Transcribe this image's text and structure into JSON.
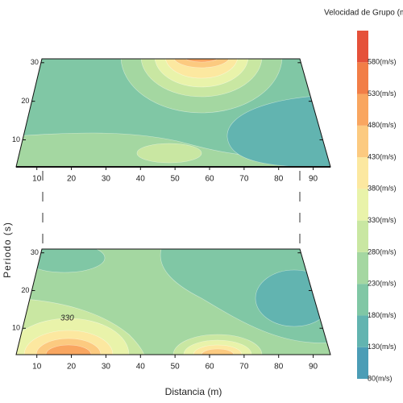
{
  "chart_data": {
    "type": "contour",
    "colorbar_title": "Velocidad de Grupo (m/s)",
    "clim": [
      80,
      630
    ],
    "levels": [
      {
        "value": 80,
        "label": "80(m/s)"
      },
      {
        "value": 130,
        "label": "130(m/s)"
      },
      {
        "value": 180,
        "label": "180(m/s)"
      },
      {
        "value": 230,
        "label": "230(m/s)"
      },
      {
        "value": 280,
        "label": "280(m/s)"
      },
      {
        "value": 330,
        "label": "330(m/s)"
      },
      {
        "value": 380,
        "label": "380(m/s)"
      },
      {
        "value": 430,
        "label": "430(m/s)"
      },
      {
        "value": 480,
        "label": "480(m/s)"
      },
      {
        "value": 530,
        "label": "530(m/s)"
      },
      {
        "value": 580,
        "label": "580(m/s)"
      }
    ],
    "colors": [
      "#4b9db6",
      "#62b4b0",
      "#80c7a5",
      "#a4d7a1",
      "#c9e7a2",
      "#e9f3aa",
      "#fce8a0",
      "#fcca80",
      "#f9a660",
      "#f27e47",
      "#e5513a"
    ],
    "xlabel": "Distancia (m)",
    "ylabel": "Periodo (s)",
    "xlim": [
      4,
      95
    ],
    "xticks": [
      10,
      20,
      30,
      40,
      50,
      60,
      70,
      80,
      90
    ],
    "ylim": [
      3,
      31
    ],
    "yticks": [
      10,
      20,
      30
    ],
    "annotation": "330"
  }
}
